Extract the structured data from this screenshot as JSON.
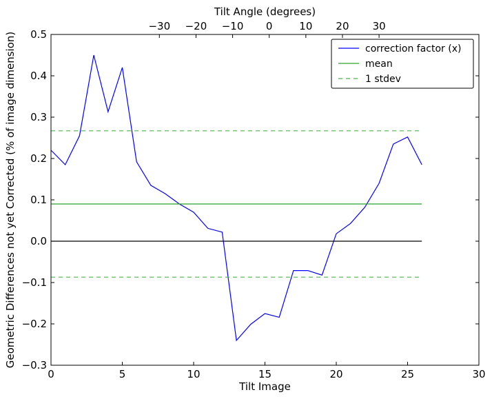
{
  "chart_data": {
    "type": "line",
    "xlabel": "Tilt Image",
    "ylabel": "Geometric Differences not yet Corrected (% of image dimension)",
    "top_xlabel": "Tilt Angle (degrees)",
    "xlim": [
      0,
      30
    ],
    "ylim": [
      -0.3,
      0.5
    ],
    "x_ticks": [
      0,
      5,
      10,
      15,
      20,
      25,
      30
    ],
    "y_ticks": [
      -0.3,
      -0.2,
      -0.1,
      0.0,
      0.1,
      0.2,
      0.3,
      0.4,
      0.5
    ],
    "x_tick_labels": [
      "0",
      "5",
      "10",
      "15",
      "20",
      "25",
      "30"
    ],
    "y_tick_labels": [
      "−0.3",
      "−0.2",
      "−0.1",
      "0.0",
      "0.1",
      "0.2",
      "0.3",
      "0.4",
      "0.5"
    ],
    "top_axis": {
      "ticks": [
        -30,
        -20,
        -10,
        0,
        10,
        20,
        30
      ],
      "tick_labels": [
        "−30",
        "−20",
        "−10",
        "0",
        "10",
        "20",
        "30"
      ],
      "tilt_image_at_0_deg": 15.3,
      "images_per_degree": 0.2567
    },
    "series": [
      {
        "name": "correction factor (x)",
        "color": "#0000ff",
        "style": "solid",
        "x": [
          0,
          1,
          2,
          3,
          4,
          5,
          6,
          7,
          8,
          9,
          10,
          11,
          12,
          13,
          14,
          15,
          16,
          17,
          18,
          19,
          20,
          21,
          22,
          23,
          24,
          25,
          26
        ],
        "y": [
          0.22,
          0.185,
          0.255,
          0.45,
          0.313,
          0.42,
          0.192,
          0.135,
          0.115,
          0.09,
          0.07,
          0.031,
          0.022,
          -0.24,
          -0.201,
          -0.175,
          -0.184,
          -0.071,
          -0.071,
          -0.082,
          0.018,
          0.043,
          0.082,
          0.14,
          0.235,
          0.252,
          0.185
        ]
      },
      {
        "name": "mean",
        "color": "#2ca02c",
        "style": "solid",
        "x": [
          0,
          26
        ],
        "y": [
          0.09,
          0.09
        ]
      },
      {
        "name": "1 stdev",
        "color": "#4cb54c",
        "style": "dashed",
        "x": [
          0,
          26
        ],
        "y": [
          0.267,
          0.267
        ]
      },
      {
        "name": "",
        "color": "#4cb54c",
        "style": "dashed",
        "x": [
          0,
          26
        ],
        "y": [
          -0.087,
          -0.087
        ]
      },
      {
        "name": "",
        "color": "#000000",
        "style": "solid",
        "x": [
          0,
          26
        ],
        "y": [
          0.0,
          0.0
        ]
      }
    ],
    "legend": {
      "placement": "top-right",
      "entries": [
        {
          "label": "correction factor (x)",
          "color": "#0000ff",
          "style": "solid"
        },
        {
          "label": "mean",
          "color": "#2ca02c",
          "style": "solid"
        },
        {
          "label": "1 stdev",
          "color": "#4cb54c",
          "style": "dashed"
        }
      ]
    },
    "grid": false
  }
}
